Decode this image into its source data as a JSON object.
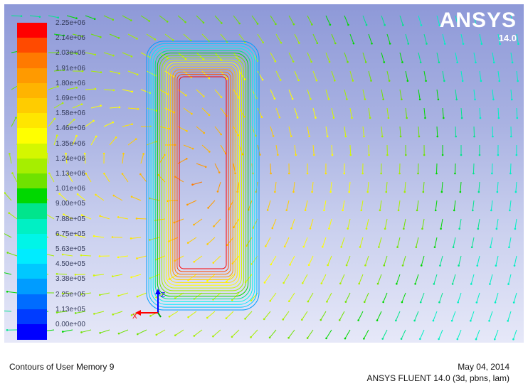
{
  "window": {
    "logo_text": "ANSYS",
    "logo_version": "14.0"
  },
  "colorbar": {
    "labels": [
      "2.25e+06",
      "2.14e+06",
      "2.03e+06",
      "1.91e+06",
      "1.80e+06",
      "1.69e+06",
      "1.58e+06",
      "1.46e+06",
      "1.35e+06",
      "1.24e+06",
      "1.13e+06",
      "1.01e+06",
      "9.00e+05",
      "7.88e+05",
      "6.75e+05",
      "5.63e+05",
      "4.50e+05",
      "3.38e+05",
      "2.25e+05",
      "1.13e+05",
      "0.00e+00"
    ],
    "colors": [
      "#ff0000",
      "#ff4a00",
      "#ff7a00",
      "#ff9a00",
      "#ffb400",
      "#ffcc00",
      "#ffe600",
      "#ffff00",
      "#d4f700",
      "#a6ee00",
      "#6fe200",
      "#00d800",
      "#00e58c",
      "#00f0c4",
      "#00f5e8",
      "#00ecff",
      "#00c8ff",
      "#009cff",
      "#006cff",
      "#003cff",
      "#0000ff"
    ]
  },
  "axes": {
    "x_label": "X",
    "z_label": "Z",
    "x_color": "#ff0000",
    "z_color": "#0000ff"
  },
  "footer": {
    "caption": "Contours of User Memory 9",
    "date": "May 04, 2014",
    "product": "ANSYS FLUENT 14.0 (3d, pbns, lam)"
  }
}
